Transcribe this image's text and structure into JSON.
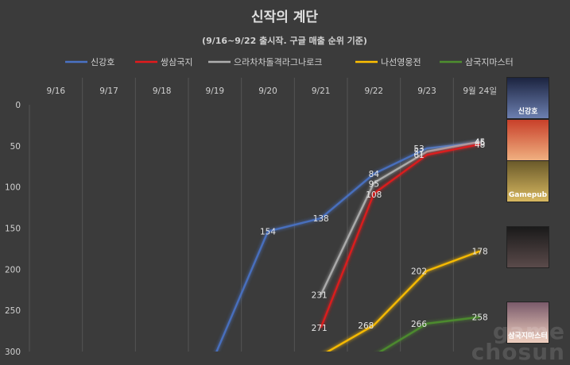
{
  "chart_data": {
    "type": "line",
    "title": "신작의 계단",
    "subtitle": "(9/16~9/22 출시작. 구글 매출 순위 기준)",
    "categories": [
      "9/16",
      "9/17",
      "9/18",
      "9/19",
      "9/20",
      "9/21",
      "9/22",
      "9/23",
      "9월 24일"
    ],
    "ylim": [
      0,
      300
    ],
    "yticks": [
      0,
      50,
      100,
      150,
      200,
      250,
      300
    ],
    "y_inverted": true,
    "grid": true,
    "legend_position": "top",
    "series": [
      {
        "name": "신강호",
        "color": "#4a72c4",
        "values": [
          null,
          null,
          null,
          305,
          154,
          138,
          84,
          53,
          46
        ],
        "labels": [
          null,
          null,
          null,
          null,
          "154",
          "138",
          "84",
          "53",
          "46"
        ]
      },
      {
        "name": "쌍삼국지",
        "color": "#e31a1c",
        "values": [
          null,
          null,
          null,
          null,
          null,
          271,
          108,
          61,
          48
        ],
        "labels": [
          null,
          null,
          null,
          null,
          null,
          "271",
          "108",
          "61",
          "48"
        ]
      },
      {
        "name": "으라차차돌격라그나로크",
        "color": "#b0b0b0",
        "values": [
          null,
          null,
          null,
          null,
          null,
          231,
          95,
          57,
          45
        ],
        "labels": [
          null,
          null,
          null,
          null,
          null,
          "231",
          "95",
          "57",
          "45"
        ]
      },
      {
        "name": "나선영웅전",
        "color": "#ffc000",
        "values": [
          null,
          null,
          null,
          null,
          null,
          305,
          268,
          202,
          178
        ],
        "labels": [
          null,
          null,
          null,
          null,
          null,
          null,
          "268",
          "202",
          "178"
        ]
      },
      {
        "name": "삼국지마스터",
        "color": "#4e8f2f",
        "values": [
          null,
          null,
          null,
          null,
          null,
          null,
          305,
          266,
          258
        ],
        "labels": [
          null,
          null,
          null,
          null,
          null,
          null,
          null,
          "266",
          "258"
        ]
      }
    ]
  },
  "thumbnails": [
    {
      "name": "신강호",
      "text": "신강호",
      "color_top": "#1c2440",
      "color_bottom": "#6c7fb0"
    },
    {
      "name": "쌍삼국지",
      "text": "",
      "color_top": "#c8402a",
      "color_bottom": "#f0b080"
    },
    {
      "name": "으라차차돌격라그나로크",
      "text": "Gamepub",
      "color_top": "#6a5a2a",
      "color_bottom": "#d8b860"
    },
    {
      "name": "나선영웅전",
      "text": "",
      "color_top": "#1a1a1a",
      "color_bottom": "#5a4a4a"
    },
    {
      "name": "삼국지마스터",
      "text": "삼국지마스터",
      "color_top": "#7a5a6a",
      "color_bottom": "#f0d0c0"
    }
  ],
  "watermark": {
    "line1": "game",
    "line2": "chosun"
  }
}
